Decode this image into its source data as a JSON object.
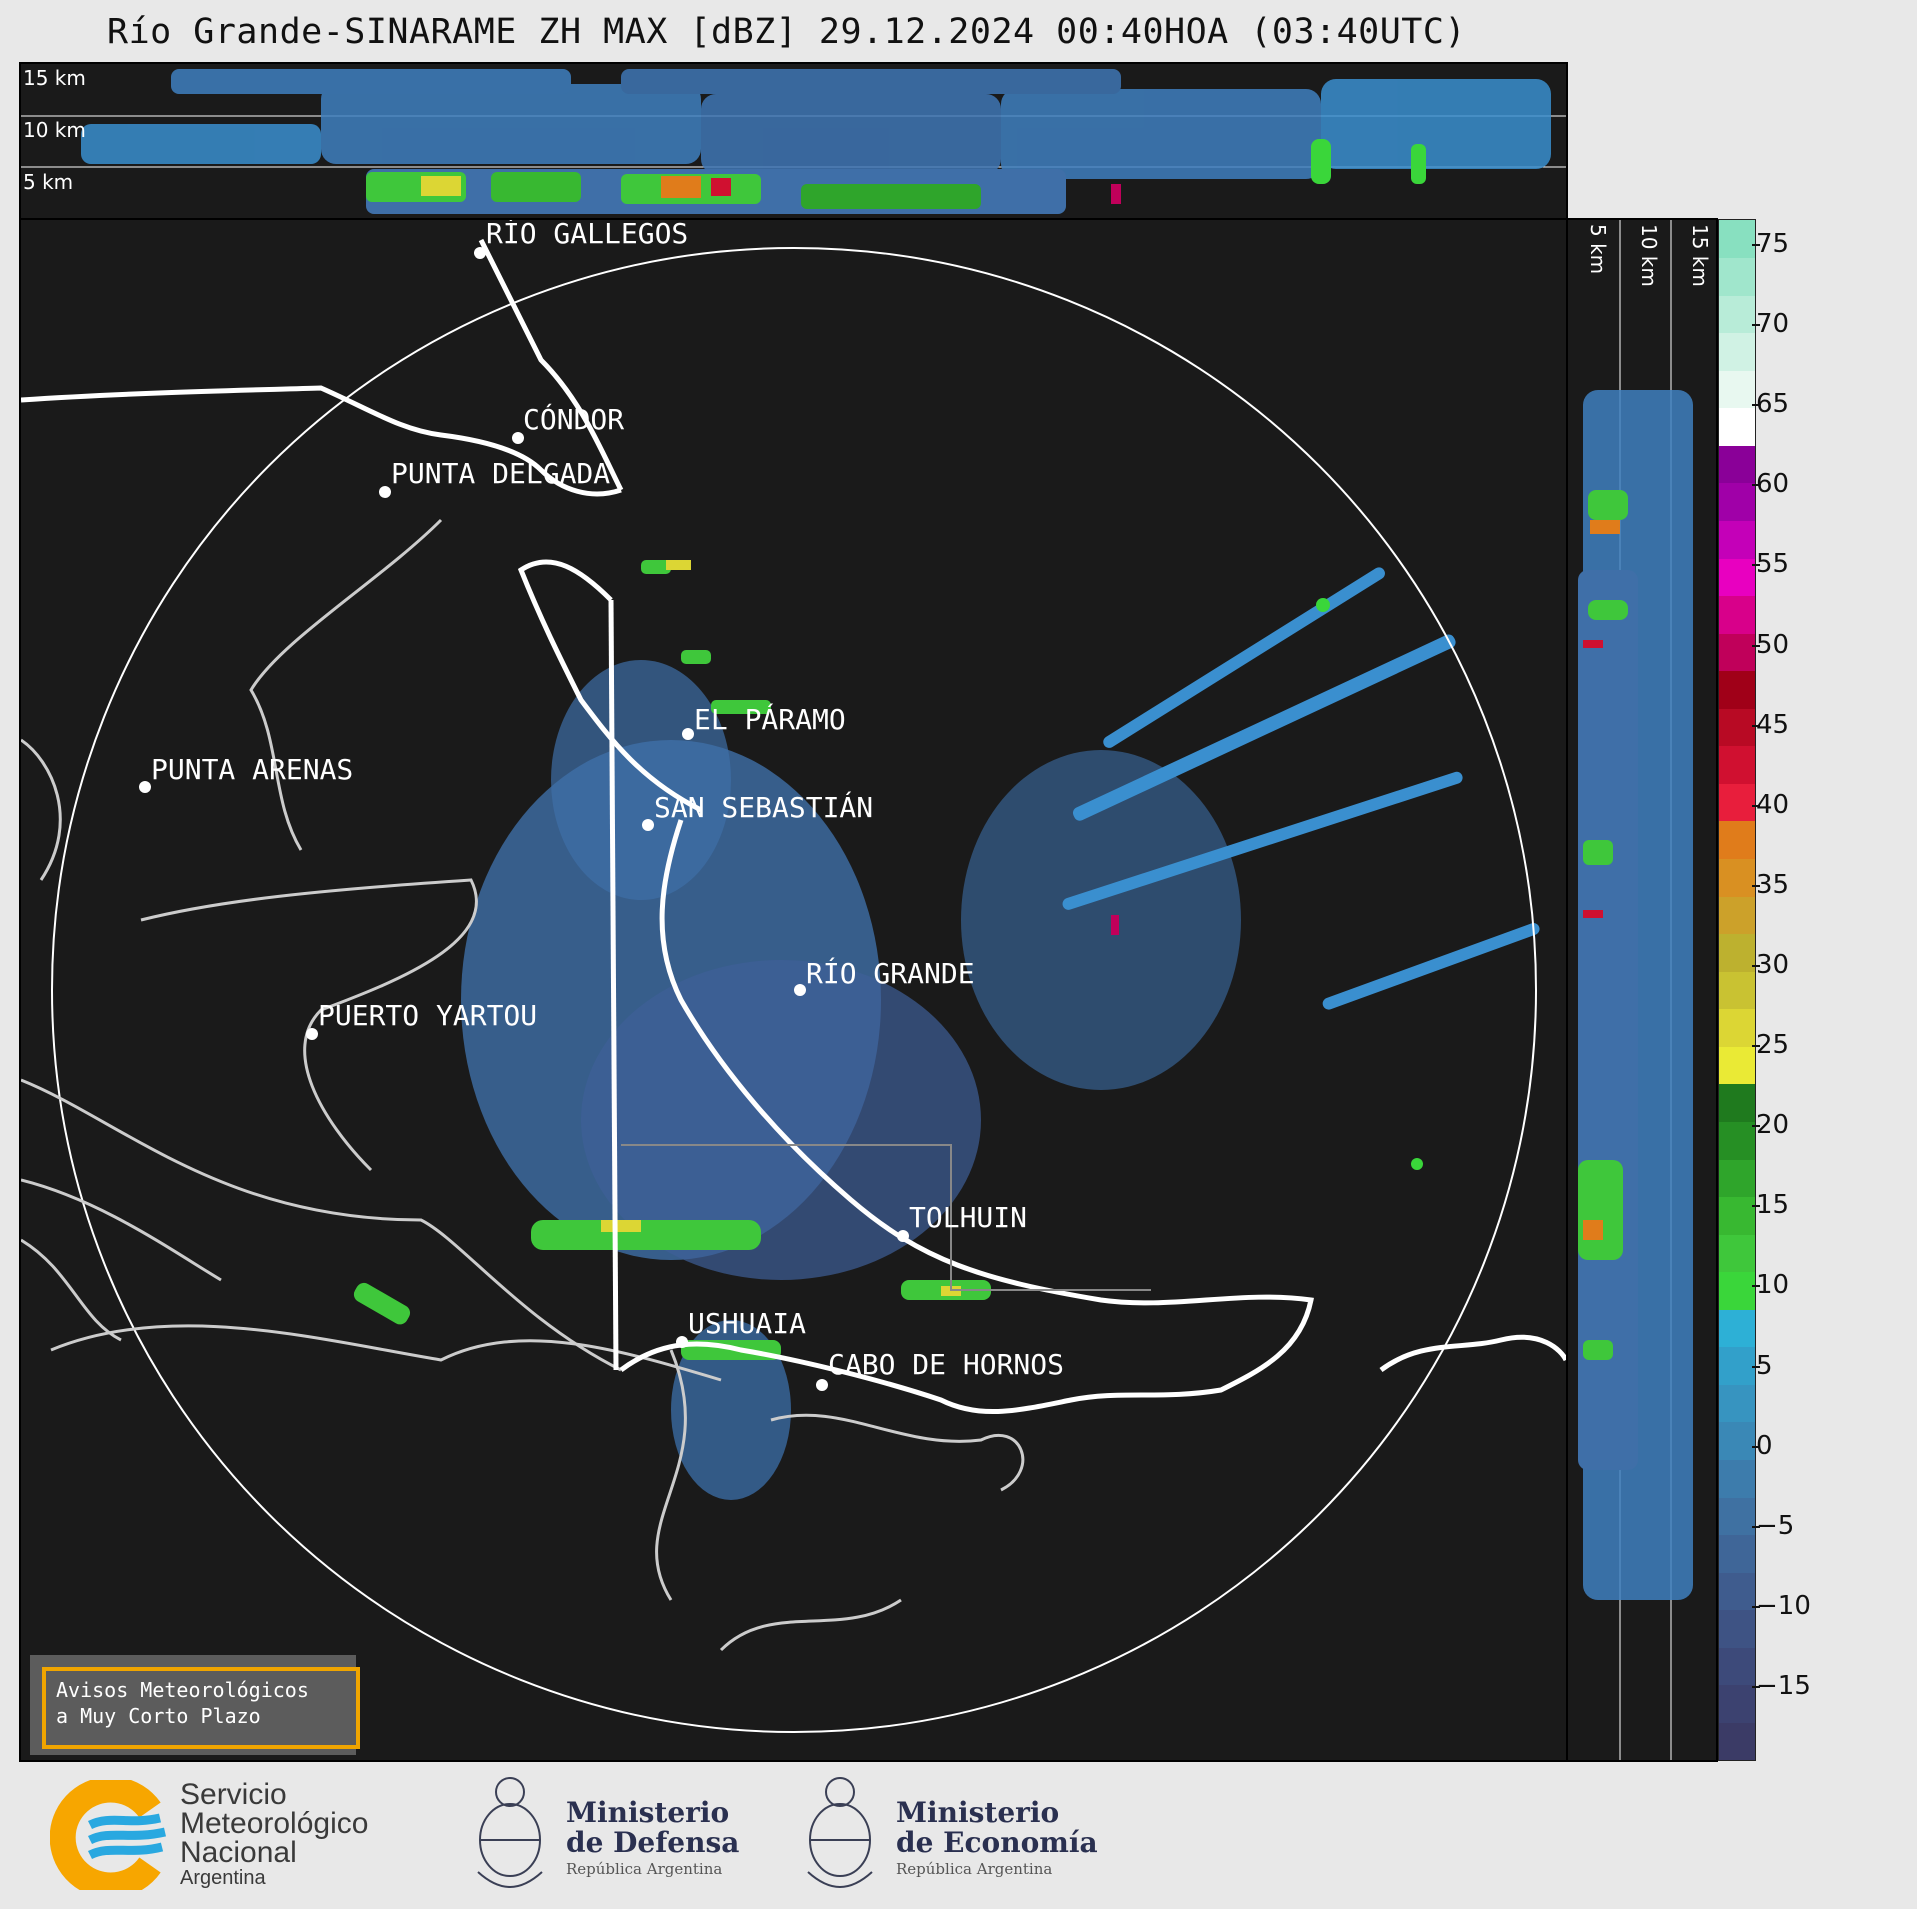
{
  "title": "Río Grande-SINARAME ZH MAX [dBZ] 29.12.2024 00:40HOA (03:40UTC)",
  "top_altitudes": [
    "15 km",
    "10 km",
    "5 km"
  ],
  "side_altitudes": [
    "5 km",
    "10 km",
    "15 km"
  ],
  "cities": [
    {
      "name": "RÍO GALLEGOS"
    },
    {
      "name": "CÓNDOR"
    },
    {
      "name": "PUNTA DELGADA"
    },
    {
      "name": "EL PÁRAMO"
    },
    {
      "name": "PUNTA ARENAS"
    },
    {
      "name": "SAN SEBASTIÁN"
    },
    {
      "name": "RÍO GRANDE"
    },
    {
      "name": "PUERTO YARTOU"
    },
    {
      "name": "TOLHUIN"
    },
    {
      "name": "USHUAIA"
    },
    {
      "name": "CABO DE HORNOS"
    }
  ],
  "colorbar": {
    "ticks": [
      "75",
      "70",
      "65",
      "60",
      "55",
      "50",
      "45",
      "40",
      "35",
      "30",
      "25",
      "20",
      "15",
      "10",
      "5",
      "0",
      "−5",
      "−10",
      "−15"
    ],
    "colors": [
      "#3b3b66",
      "#3c4270",
      "#3d4a7a",
      "#3e5384",
      "#3f5c8e",
      "#3f6698",
      "#3f71a2",
      "#3d7cac",
      "#3a88b6",
      "#3794c0",
      "#32a0ca",
      "#2db0d6",
      "#3ad63a",
      "#3fc73b",
      "#38b831",
      "#2fa52b",
      "#268f24",
      "#1f7a1e",
      "#eaea35",
      "#dcd634",
      "#c9c232",
      "#bdb12f",
      "#cca12a",
      "#d99022",
      "#e07c1b",
      "#e81e3c",
      "#d01030",
      "#b80a24",
      "#a00018",
      "#c0005a",
      "#d8008a",
      "#e800c0",
      "#c400b8",
      "#a000a8",
      "#8a0098",
      "#ffffff",
      "#e8f8f0",
      "#d0f2e4",
      "#b8ecd8",
      "#a0e6cc",
      "#88e0c0"
    ]
  },
  "notice": {
    "line1": "Avisos Meteorológicos",
    "line2": "a Muy Corto Plazo"
  },
  "logos": {
    "smn": {
      "line1": "Servicio",
      "line2": "Meteorológico",
      "line3": "Nacional",
      "line4": "Argentina"
    },
    "defensa": {
      "line1": "Ministerio",
      "line2": "de Defensa",
      "line3": "República Argentina"
    },
    "economia": {
      "line1": "Ministerio",
      "line2": "de Economía",
      "line3": "República Argentina"
    }
  },
  "accent_colors": {
    "smn_orange": "#f7a600",
    "smn_blue": "#29a8e0",
    "notice_border": "#f0a500"
  }
}
